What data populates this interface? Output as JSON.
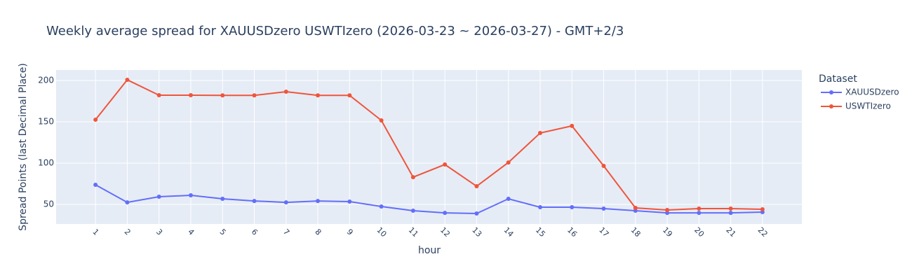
{
  "chart_data": {
    "type": "line",
    "title": "Weekly average spread for  XAUUSDzero USWTIzero (2026-03-23 ~ 2026-03-27) - GMT+2/3",
    "x_label": "hour",
    "y_label": "Spread Points (last Decimal Place)",
    "legend_title": "Dataset",
    "x": [
      1,
      2,
      3,
      4,
      5,
      6,
      7,
      8,
      9,
      10,
      11,
      12,
      13,
      14,
      15,
      16,
      17,
      18,
      19,
      20,
      21,
      22
    ],
    "series": [
      {
        "name": "XAUUSDzero",
        "color": "#636efa",
        "values": [
          73.7,
          52.5,
          59.3,
          61,
          56.8,
          54.2,
          52.5,
          54.2,
          53.4,
          47.5,
          42.4,
          39.8,
          39,
          56.8,
          46.6,
          46.6,
          44.9,
          42.4,
          39.8,
          39.8,
          39.8,
          40.7
        ]
      },
      {
        "name": "USWTIzero",
        "color": "#ef553b",
        "values": [
          152.5,
          200.8,
          182.2,
          182.2,
          182,
          182,
          186.4,
          182,
          182,
          151.7,
          83,
          98.3,
          72,
          100.8,
          136.4,
          145,
          96.6,
          45.8,
          43.2,
          44.9,
          44.9,
          44.1
        ]
      }
    ],
    "xlim": [
      -0.24,
      23.24
    ],
    "xticks": [
      1,
      2,
      3,
      4,
      5,
      6,
      7,
      8,
      9,
      10,
      11,
      12,
      13,
      14,
      15,
      16,
      17,
      18,
      19,
      20,
      21,
      22
    ],
    "ylim": [
      26.3,
      212.7
    ],
    "yticks": [
      50,
      100,
      150,
      200
    ],
    "grid": true,
    "legend": "right"
  }
}
